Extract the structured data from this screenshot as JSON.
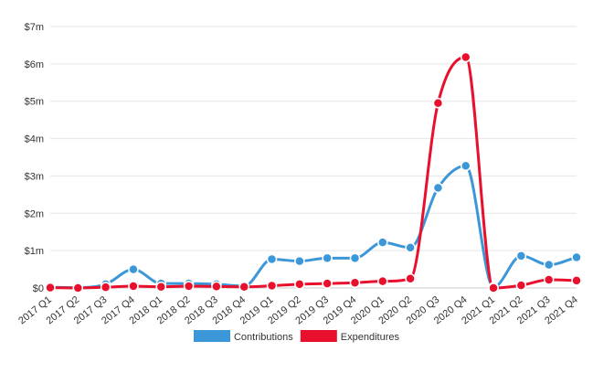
{
  "chart_data": {
    "type": "line",
    "smooth": true,
    "categories": [
      "2017 Q1",
      "2017 Q2",
      "2017 Q3",
      "2017 Q4",
      "2018 Q1",
      "2018 Q2",
      "2018 Q3",
      "2018 Q4",
      "2019 Q1",
      "2019 Q2",
      "2019 Q3",
      "2019 Q4",
      "2020 Q1",
      "2020 Q2",
      "2020 Q3",
      "2020 Q4",
      "2021 Q1",
      "2021 Q2",
      "2021 Q3",
      "2021 Q4"
    ],
    "y_ticks": [
      {
        "value": 0,
        "label": "$0"
      },
      {
        "value": 1,
        "label": "$1m"
      },
      {
        "value": 2,
        "label": "$2m"
      },
      {
        "value": 3,
        "label": "$3m"
      },
      {
        "value": 4,
        "label": "$4m"
      },
      {
        "value": 5,
        "label": "$5m"
      },
      {
        "value": 6,
        "label": "$6m"
      },
      {
        "value": 7,
        "label": "$7m"
      }
    ],
    "ylim": [
      0,
      7
    ],
    "y_unit": "millions of dollars",
    "grid": true,
    "legend_position": "bottom",
    "series": [
      {
        "name": "Contributions",
        "color": "#3b97d8",
        "values": [
          0.02,
          0.01,
          0.1,
          0.5,
          0.12,
          0.12,
          0.1,
          0.05,
          0.77,
          0.72,
          0.8,
          0.8,
          1.22,
          1.08,
          2.68,
          3.27,
          0.02,
          0.86,
          0.62,
          0.82
        ]
      },
      {
        "name": "Expenditures",
        "color": "#e8102d",
        "values": [
          0.01,
          0.0,
          0.02,
          0.05,
          0.03,
          0.05,
          0.04,
          0.03,
          0.06,
          0.1,
          0.12,
          0.14,
          0.18,
          0.25,
          4.95,
          6.18,
          0.0,
          0.07,
          0.22,
          0.2
        ]
      }
    ]
  }
}
